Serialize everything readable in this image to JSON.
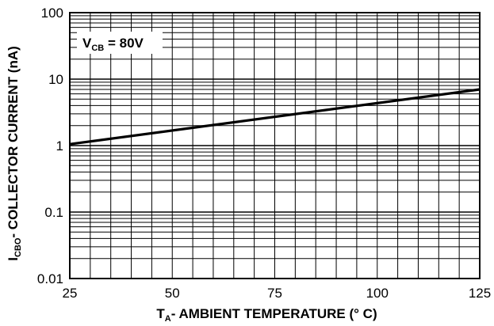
{
  "chart_data": {
    "type": "line",
    "title": "",
    "xlabel": {
      "main": "T",
      "sub": "A",
      "rest": "- AMBIENT TEMPERATURE (° C)"
    },
    "ylabel": {
      "main": "I",
      "sub": "CBO",
      "rest": "- COLLECTOR CURRENT (nA)"
    },
    "xlim": [
      25,
      125
    ],
    "ylim": [
      0.01,
      100
    ],
    "yscale": "log",
    "xticks": [
      25,
      50,
      75,
      100,
      125
    ],
    "xtick_labels": [
      "25",
      "50",
      "75",
      "100",
      "125"
    ],
    "yticks": [
      0.01,
      0.1,
      1,
      10,
      100
    ],
    "ytick_labels": [
      "0.01",
      "0.1",
      "1",
      "10",
      "100"
    ],
    "grid": true,
    "annotation": {
      "main": "V",
      "sub": "CB",
      "rest": " = 80V"
    },
    "series": [
      {
        "x": [
          25,
          125
        ],
        "y": [
          1.05,
          7.0
        ]
      }
    ]
  }
}
